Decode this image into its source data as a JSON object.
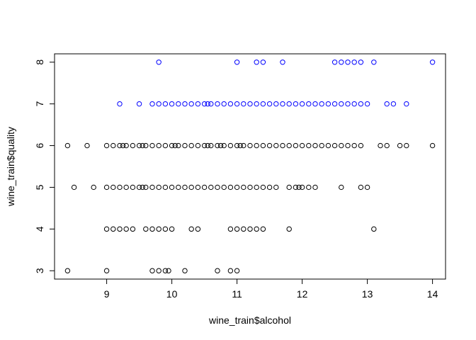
{
  "chart_data": {
    "type": "scatter",
    "title": "",
    "xlabel": "wine_train$alcohol",
    "ylabel": "wine_train$quality",
    "xlim": [
      8.2,
      14.2
    ],
    "ylim": [
      2.8,
      8.2
    ],
    "xticks": [
      9,
      10,
      11,
      12,
      13,
      14
    ],
    "yticks": [
      3,
      4,
      5,
      6,
      7,
      8
    ],
    "grid": false,
    "legend": "none",
    "colors": {
      "low_quality": "#000000",
      "high_quality": "#0000ff"
    },
    "series": [
      {
        "color": "#000000",
        "points": [
          [
            8.4,
            3
          ],
          [
            9.0,
            3
          ],
          [
            9.7,
            3
          ],
          [
            9.8,
            3
          ],
          [
            9.9,
            3
          ],
          [
            9.95,
            3
          ],
          [
            10.2,
            3
          ],
          [
            10.7,
            3
          ],
          [
            10.9,
            3
          ],
          [
            11.0,
            3
          ],
          [
            9.0,
            4
          ],
          [
            9.1,
            4
          ],
          [
            9.2,
            4
          ],
          [
            9.3,
            4
          ],
          [
            9.4,
            4
          ],
          [
            9.6,
            4
          ],
          [
            9.7,
            4
          ],
          [
            9.8,
            4
          ],
          [
            9.9,
            4
          ],
          [
            10.0,
            4
          ],
          [
            10.3,
            4
          ],
          [
            10.4,
            4
          ],
          [
            10.9,
            4
          ],
          [
            11.0,
            4
          ],
          [
            11.1,
            4
          ],
          [
            11.2,
            4
          ],
          [
            11.3,
            4
          ],
          [
            11.4,
            4
          ],
          [
            11.8,
            4
          ],
          [
            13.1,
            4
          ],
          [
            8.5,
            5
          ],
          [
            8.8,
            5
          ],
          [
            9.0,
            5
          ],
          [
            9.1,
            5
          ],
          [
            9.2,
            5
          ],
          [
            9.3,
            5
          ],
          [
            9.4,
            5
          ],
          [
            9.5,
            5
          ],
          [
            9.55,
            5
          ],
          [
            9.6,
            5
          ],
          [
            9.7,
            5
          ],
          [
            9.8,
            5
          ],
          [
            9.9,
            5
          ],
          [
            10.0,
            5
          ],
          [
            10.1,
            5
          ],
          [
            10.2,
            5
          ],
          [
            10.3,
            5
          ],
          [
            10.4,
            5
          ],
          [
            10.5,
            5
          ],
          [
            10.6,
            5
          ],
          [
            10.7,
            5
          ],
          [
            10.8,
            5
          ],
          [
            10.9,
            5
          ],
          [
            11.0,
            5
          ],
          [
            11.1,
            5
          ],
          [
            11.2,
            5
          ],
          [
            11.3,
            5
          ],
          [
            11.4,
            5
          ],
          [
            11.5,
            5
          ],
          [
            11.6,
            5
          ],
          [
            11.8,
            5
          ],
          [
            11.9,
            5
          ],
          [
            11.95,
            5
          ],
          [
            12.0,
            5
          ],
          [
            12.1,
            5
          ],
          [
            12.2,
            5
          ],
          [
            12.6,
            5
          ],
          [
            12.9,
            5
          ],
          [
            13.0,
            5
          ],
          [
            8.4,
            6
          ],
          [
            8.7,
            6
          ],
          [
            9.0,
            6
          ],
          [
            9.1,
            6
          ],
          [
            9.2,
            6
          ],
          [
            9.25,
            6
          ],
          [
            9.3,
            6
          ],
          [
            9.4,
            6
          ],
          [
            9.5,
            6
          ],
          [
            9.55,
            6
          ],
          [
            9.6,
            6
          ],
          [
            9.7,
            6
          ],
          [
            9.8,
            6
          ],
          [
            9.9,
            6
          ],
          [
            10.0,
            6
          ],
          [
            10.05,
            6
          ],
          [
            10.1,
            6
          ],
          [
            10.2,
            6
          ],
          [
            10.3,
            6
          ],
          [
            10.4,
            6
          ],
          [
            10.5,
            6
          ],
          [
            10.55,
            6
          ],
          [
            10.6,
            6
          ],
          [
            10.7,
            6
          ],
          [
            10.75,
            6
          ],
          [
            10.8,
            6
          ],
          [
            10.9,
            6
          ],
          [
            11.0,
            6
          ],
          [
            11.05,
            6
          ],
          [
            11.1,
            6
          ],
          [
            11.2,
            6
          ],
          [
            11.3,
            6
          ],
          [
            11.4,
            6
          ],
          [
            11.5,
            6
          ],
          [
            11.6,
            6
          ],
          [
            11.7,
            6
          ],
          [
            11.8,
            6
          ],
          [
            11.9,
            6
          ],
          [
            12.0,
            6
          ],
          [
            12.1,
            6
          ],
          [
            12.2,
            6
          ],
          [
            12.3,
            6
          ],
          [
            12.4,
            6
          ],
          [
            12.5,
            6
          ],
          [
            12.6,
            6
          ],
          [
            12.7,
            6
          ],
          [
            12.8,
            6
          ],
          [
            12.9,
            6
          ],
          [
            13.2,
            6
          ],
          [
            13.3,
            6
          ],
          [
            13.5,
            6
          ],
          [
            13.6,
            6
          ],
          [
            14.0,
            6
          ]
        ]
      },
      {
        "color": "#0000ff",
        "points": [
          [
            9.2,
            7
          ],
          [
            9.5,
            7
          ],
          [
            9.7,
            7
          ],
          [
            9.8,
            7
          ],
          [
            9.9,
            7
          ],
          [
            10.0,
            7
          ],
          [
            10.1,
            7
          ],
          [
            10.2,
            7
          ],
          [
            10.3,
            7
          ],
          [
            10.4,
            7
          ],
          [
            10.5,
            7
          ],
          [
            10.55,
            7
          ],
          [
            10.6,
            7
          ],
          [
            10.7,
            7
          ],
          [
            10.8,
            7
          ],
          [
            10.9,
            7
          ],
          [
            11.0,
            7
          ],
          [
            11.1,
            7
          ],
          [
            11.2,
            7
          ],
          [
            11.3,
            7
          ],
          [
            11.4,
            7
          ],
          [
            11.5,
            7
          ],
          [
            11.6,
            7
          ],
          [
            11.7,
            7
          ],
          [
            11.8,
            7
          ],
          [
            11.9,
            7
          ],
          [
            12.0,
            7
          ],
          [
            12.1,
            7
          ],
          [
            12.2,
            7
          ],
          [
            12.3,
            7
          ],
          [
            12.4,
            7
          ],
          [
            12.5,
            7
          ],
          [
            12.6,
            7
          ],
          [
            12.7,
            7
          ],
          [
            12.8,
            7
          ],
          [
            12.9,
            7
          ],
          [
            13.0,
            7
          ],
          [
            13.3,
            7
          ],
          [
            13.4,
            7
          ],
          [
            13.6,
            7
          ],
          [
            9.8,
            8
          ],
          [
            11.0,
            8
          ],
          [
            11.3,
            8
          ],
          [
            11.4,
            8
          ],
          [
            11.7,
            8
          ],
          [
            12.5,
            8
          ],
          [
            12.6,
            8
          ],
          [
            12.7,
            8
          ],
          [
            12.8,
            8
          ],
          [
            12.9,
            8
          ],
          [
            13.1,
            8
          ],
          [
            14.0,
            8
          ]
        ]
      }
    ]
  }
}
